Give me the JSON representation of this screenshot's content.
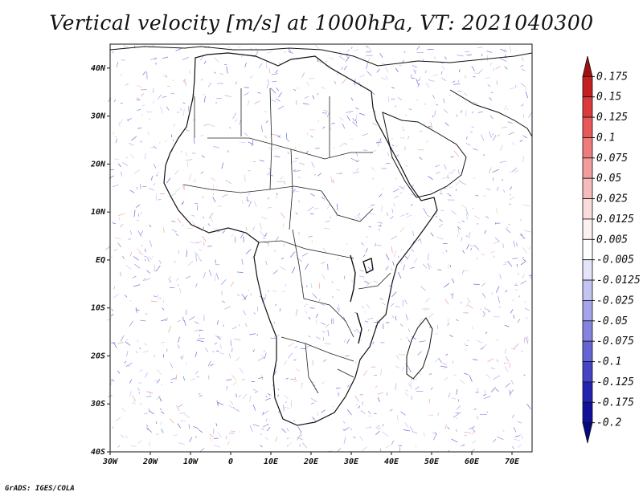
{
  "title": "Vertical velocity [m/s] at 1000hPa, VT: 2021040300",
  "credit": "GrADS: IGES/COLA",
  "map": {
    "lon_range": [
      -30,
      75
    ],
    "lat_range": [
      -40,
      45
    ],
    "lon_ticks": [
      {
        "value": -30,
        "label": "30W"
      },
      {
        "value": -20,
        "label": "20W"
      },
      {
        "value": -10,
        "label": "10W"
      },
      {
        "value": 0,
        "label": "0"
      },
      {
        "value": 10,
        "label": "10E"
      },
      {
        "value": 20,
        "label": "20E"
      },
      {
        "value": 30,
        "label": "30E"
      },
      {
        "value": 40,
        "label": "40E"
      },
      {
        "value": 50,
        "label": "50E"
      },
      {
        "value": 60,
        "label": "60E"
      },
      {
        "value": 70,
        "label": "70E"
      }
    ],
    "lat_ticks": [
      {
        "value": 40,
        "label": "40N"
      },
      {
        "value": 30,
        "label": "30N"
      },
      {
        "value": 20,
        "label": "20N"
      },
      {
        "value": 10,
        "label": "10N"
      },
      {
        "value": 0,
        "label": "EQ"
      },
      {
        "value": -10,
        "label": "10S"
      },
      {
        "value": -20,
        "label": "20S"
      },
      {
        "value": -30,
        "label": "30S"
      },
      {
        "value": -40,
        "label": "40S"
      }
    ]
  },
  "colorbar": {
    "labels": [
      "0.175",
      "0.15",
      "0.125",
      "0.1",
      "0.075",
      "0.05",
      "0.025",
      "0.0125",
      "0.005",
      "-0.005",
      "-0.0125",
      "-0.025",
      "-0.05",
      "-0.075",
      "-0.1",
      "-0.125",
      "-0.175",
      "-0.2"
    ],
    "colors": [
      "#a01010",
      "#c42020",
      "#dc3a3a",
      "#e85858",
      "#ee7c7c",
      "#f29c9c",
      "#f6bcbc",
      "#fadcdc",
      "#fdf0f0",
      "#ffffff",
      "#e4e4fa",
      "#c4c4f2",
      "#a4a4ea",
      "#8484e0",
      "#6464d4",
      "#4444c4",
      "#2424b0",
      "#10109c",
      "#080880"
    ]
  }
}
